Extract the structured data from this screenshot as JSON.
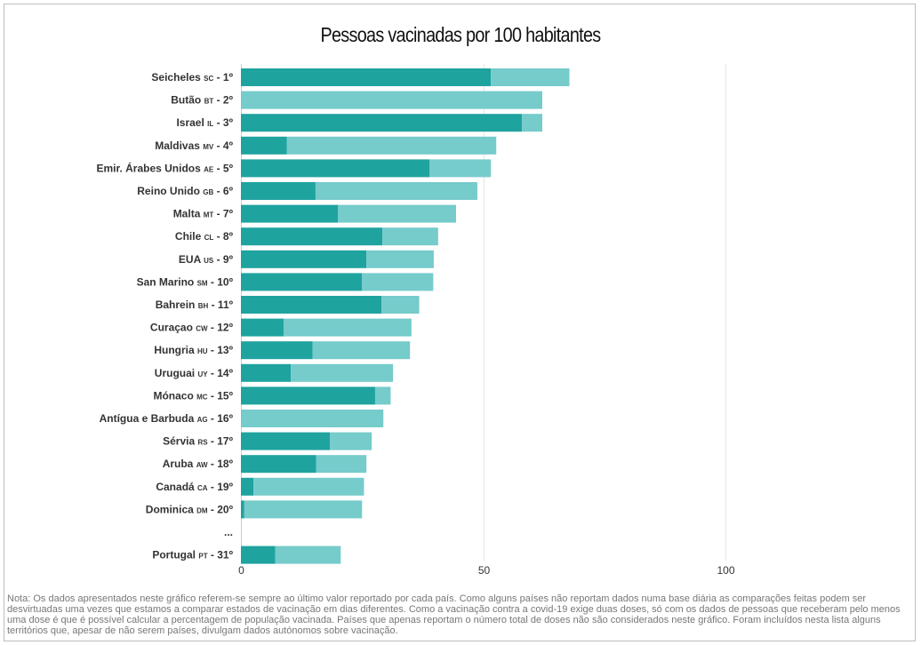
{
  "title": "Pessoas vacinadas por 100 habitantes",
  "colors": {
    "full": "#1fa39f",
    "partial": "#76cbcb",
    "grid": "#e6e6e6"
  },
  "chart_data": {
    "type": "bar",
    "orientation": "horizontal",
    "stacked": true,
    "title": "Pessoas vacinadas por 100 habitantes",
    "xlim": [
      0,
      100
    ],
    "xticks": [
      "0",
      "50",
      "100"
    ],
    "categories": [
      {
        "name": "Seicheles",
        "code": "SC",
        "rank": "1º"
      },
      {
        "name": "Butão",
        "code": "BT",
        "rank": "2º"
      },
      {
        "name": "Israel",
        "code": "IL",
        "rank": "3º"
      },
      {
        "name": "Maldivas",
        "code": "MV",
        "rank": "4º"
      },
      {
        "name": "Emir. Árabes Unidos",
        "code": "AE",
        "rank": "5º"
      },
      {
        "name": "Reino Unido",
        "code": "GB",
        "rank": "6º"
      },
      {
        "name": "Malta",
        "code": "MT",
        "rank": "7º"
      },
      {
        "name": "Chile",
        "code": "CL",
        "rank": "8º"
      },
      {
        "name": "EUA",
        "code": "US",
        "rank": "9º"
      },
      {
        "name": "San Marino",
        "code": "SM",
        "rank": "10º"
      },
      {
        "name": "Bahrein",
        "code": "BH",
        "rank": "11º"
      },
      {
        "name": "Curaçao",
        "code": "CW",
        "rank": "12º"
      },
      {
        "name": "Hungria",
        "code": "HU",
        "rank": "13º"
      },
      {
        "name": "Uruguai",
        "code": "UY",
        "rank": "14º"
      },
      {
        "name": "Mónaco",
        "code": "MC",
        "rank": "15º"
      },
      {
        "name": "Antígua e Barbuda",
        "code": "AG",
        "rank": "16º"
      },
      {
        "name": "Sérvia",
        "code": "RS",
        "rank": "17º"
      },
      {
        "name": "Aruba",
        "code": "AW",
        "rank": "18º"
      },
      {
        "name": "Canadá",
        "code": "CA",
        "rank": "19º"
      },
      {
        "name": "Dominica",
        "code": "DM",
        "rank": "20º"
      },
      {
        "name": "...",
        "code": "",
        "rank": ""
      },
      {
        "name": "Portugal",
        "code": "PT",
        "rank": "31º"
      }
    ],
    "series": [
      {
        "color": "#1fa39f",
        "values": [
          51.6,
          0,
          58.0,
          9.5,
          38.9,
          15.4,
          20.0,
          29.2,
          25.9,
          25.0,
          29.0,
          8.8,
          14.8,
          10.3,
          27.7,
          0,
          18.4,
          15.5,
          2.6,
          0.7,
          null,
          7.1
        ]
      },
      {
        "color": "#76cbcb",
        "values": [
          16.2,
          62.2,
          4.2,
          43.2,
          12.7,
          33.4,
          24.4,
          11.5,
          13.9,
          14.7,
          7.8,
          26.4,
          20.1,
          21.1,
          3.2,
          29.4,
          8.6,
          10.4,
          22.8,
          24.3,
          null,
          13.5
        ]
      }
    ],
    "grid": true
  },
  "note": "Nota: Os dados apresentados neste gráfico referem-se sempre ao último valor reportado por cada país. Como alguns países não reportam dados numa base diária as comparações feitas podem ser desvirtuadas uma vezes que estamos a comparar estados de vacinação em dias diferentes. Como a vacinação contra a covid-19 exige duas doses, só com os dados de pessoas que receberam pelo menos uma dose é que é possível calcular a percentagem de população vacinada. Países que apenas reportam o número total de doses não são considerados neste gráfico. Foram incluídos nesta lista alguns territórios que, apesar de não serem países, divulgam dados autónomos sobre vacinação."
}
